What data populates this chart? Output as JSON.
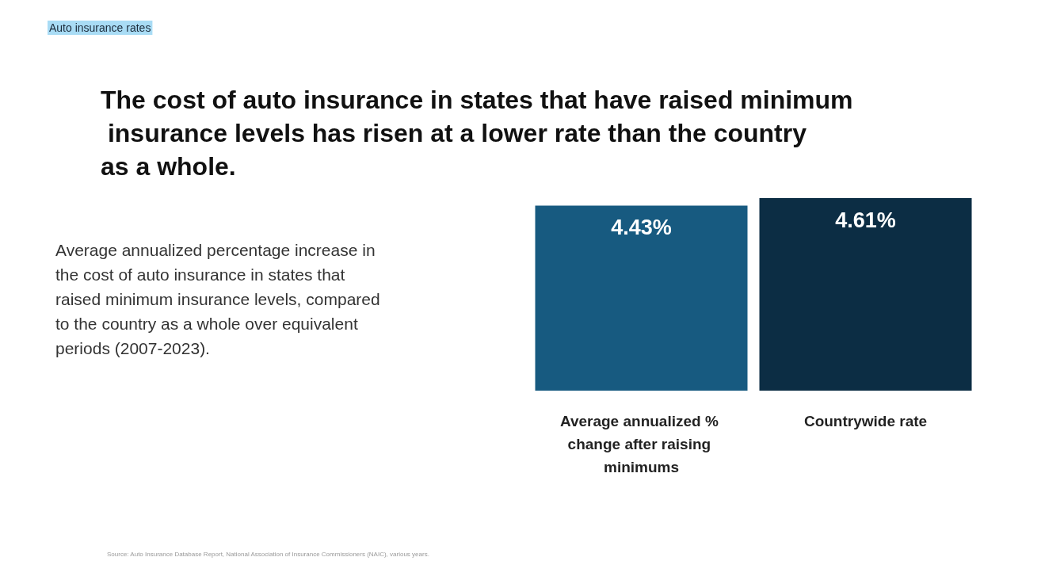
{
  "chart_data": {
    "type": "bar",
    "title": "The cost of auto insurance in states that have raised minimum insurance levels has risen at a lower rate than the country as a whole.",
    "subtitle": "Average annualized percentage increase in the cost of auto insurance in states that raised minimum insurance levels, compared to the country as a whole over equivalent periods (2007-2023).",
    "annotations": [
      "Auto insurance rates",
      "Source: Auto Insurance Database Report, National Association of Insurance Commissioners (NAIC), various years."
    ],
    "categories": [
      "Average annualized % change after raising minimums",
      "Countrywide rate"
    ],
    "values": [
      4.43,
      4.61
    ],
    "value_labels": [
      "4.43%",
      "4.61%"
    ],
    "colors": [
      "#175a80",
      "#0c2d44"
    ]
  }
}
